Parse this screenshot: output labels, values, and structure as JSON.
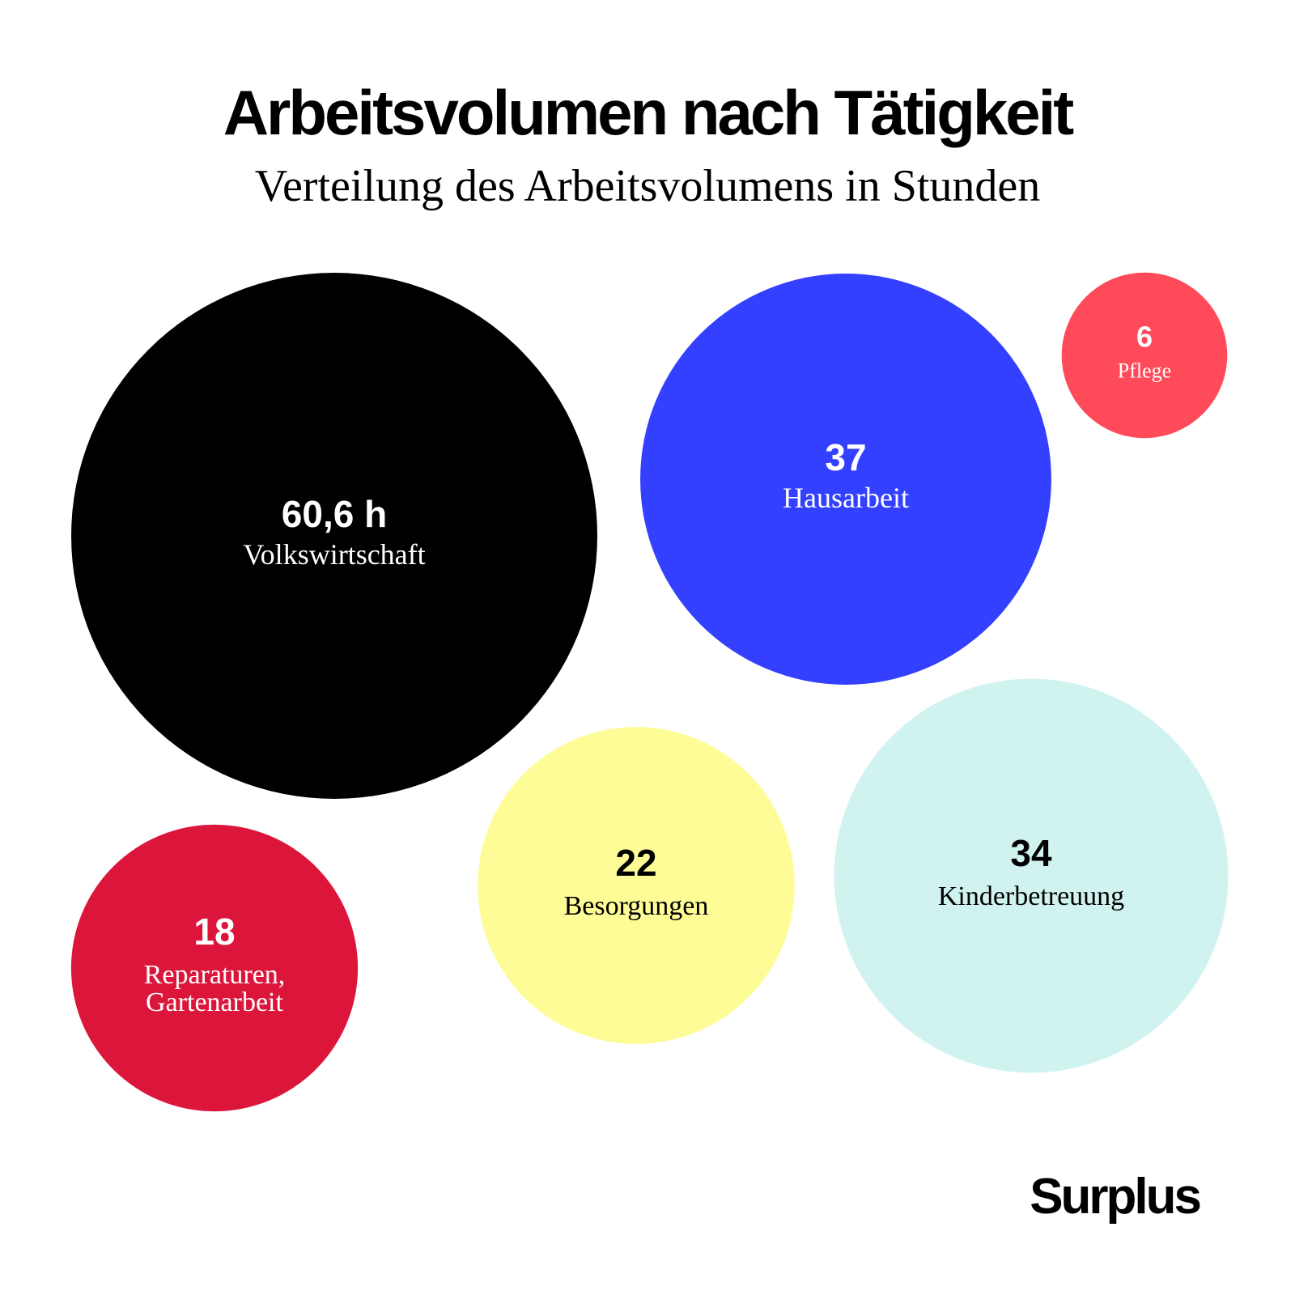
{
  "header": {
    "title": "Arbeitsvolumen nach Tätigkeit",
    "subtitle": "Verteilung des Arbeitsvolumens in Stunden"
  },
  "brand": {
    "name": "Surplus"
  },
  "chart_data": {
    "type": "bubble",
    "title": "Arbeitsvolumen nach Tätigkeit",
    "subtitle": "Verteilung des Arbeitsvolumens in Stunden",
    "unit": "h",
    "bubbles": [
      {
        "id": "volkswirtschaft",
        "label": "Volkswirtschaft",
        "value": 60.6,
        "display": "60,6 h",
        "color": "#000000",
        "text_color": "#ffffff"
      },
      {
        "id": "hausarbeit",
        "label": "Hausarbeit",
        "value": 37,
        "display": "37",
        "color": "#3340ff",
        "text_color": "#ffffff"
      },
      {
        "id": "pflege",
        "label": "Pflege",
        "value": 6,
        "display": "6",
        "color": "#ff4a59",
        "text_color": "#ffffff"
      },
      {
        "id": "reparaturen",
        "label": "Reparaturen, Gartenarbeit",
        "label_lines": [
          "Reparaturen,",
          "Gartenarbeit"
        ],
        "value": 18,
        "display": "18",
        "color": "#dc163b",
        "text_color": "#ffffff"
      },
      {
        "id": "besorgungen",
        "label": "Besorgungen",
        "value": 22,
        "display": "22",
        "color": "#fefc97",
        "text_color": "#000000"
      },
      {
        "id": "kinderbetreuung",
        "label": "Kinderbetreuung",
        "value": 34,
        "display": "34",
        "color": "#d0f3f0",
        "text_color": "#000000"
      }
    ]
  }
}
